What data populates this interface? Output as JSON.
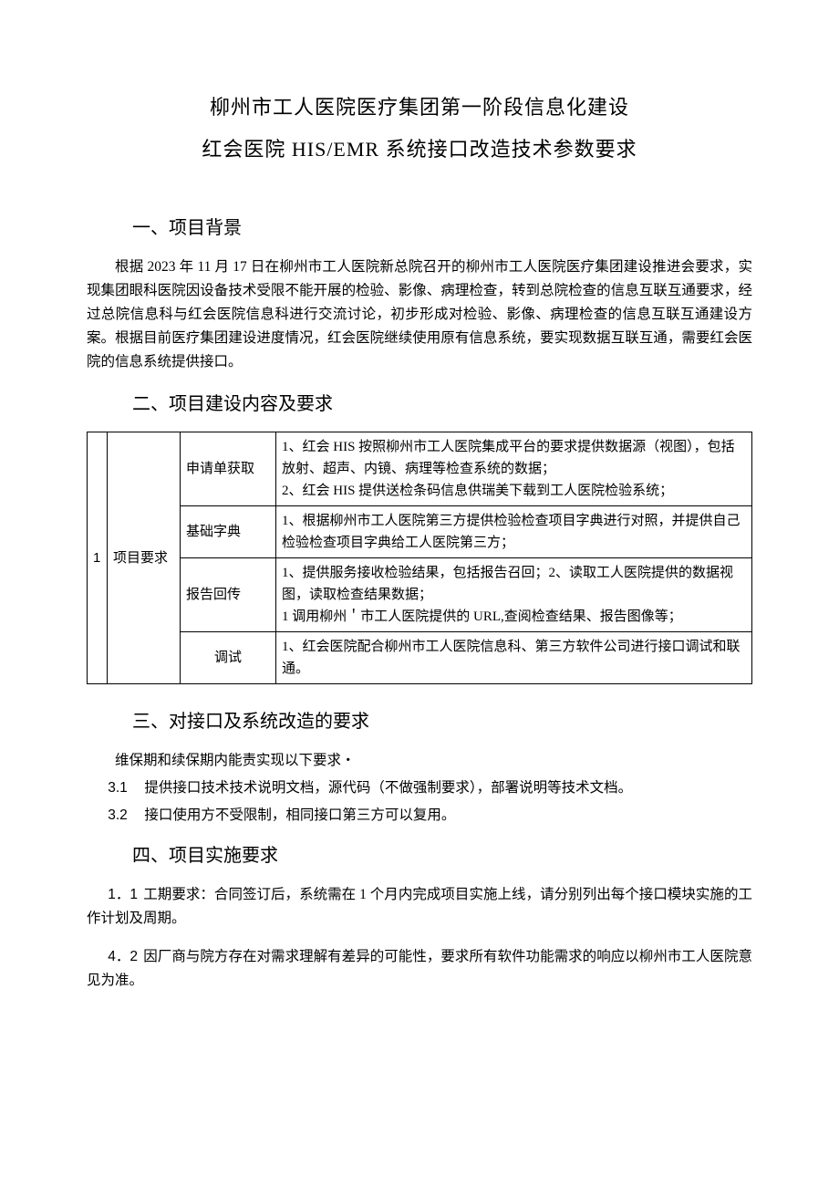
{
  "title": {
    "line1": "柳州市工人医院医疗集团第一阶段信息化建设",
    "line2": "红会医院 HIS/EMR 系统接口改造技术参数要求"
  },
  "section1": {
    "heading": "一、项目背景",
    "body": "根据 2023 年 11 月 17 日在柳州市工人医院新总院召开的柳州市工人医院医疗集团建设推进会要求，实现集团眼科医院因设备技术受限不能开展的检验、影像、病理检查，转到总院检查的信息互联互通要求，经过总院信息科与红会医院信息科进行交流讨论，初步形成对检验、影像、病理检查的信息互联互通建设方案。根据目前医疗集团建设进度情况，红会医院继续使用原有信息系统，要实现数据互联互通，需要红会医院的信息系统提供接口。"
  },
  "section2": {
    "heading": "二、项目建设内容及要求",
    "table": {
      "row_index": "1",
      "category": "项目要求",
      "rows": [
        {
          "sub": "申请单获取",
          "desc": "1、红会 HIS 按照柳州市工人医院集成平台的要求提供数据源（视图），包括放射、超声、内镜、病理等检查系统的数据；\n2、红会 HIS 提供送检条码信息供瑞美下载到工人医院检验系统；"
        },
        {
          "sub": "基础字典",
          "desc": "1、根据柳州市工人医院第三方提供检验检查项目字典进行对照，并提供自己检验检查项目字典给工人医院第三方；"
        },
        {
          "sub": "报告回传",
          "desc": "1、提供服务接收检验结果，包括报告召回；2、读取工人医院提供的数据视图，读取检查结果数据；\n1 调用柳州＇市工人医院提供的 URL,查阅检查结果、报告图像等；"
        },
        {
          "sub": "调试",
          "desc": "1、红会医院配合柳州市工人医院信息科、第三方软件公司进行接口调试和联通。"
        }
      ]
    }
  },
  "section3": {
    "heading": "三、对接口及系统改造的要求",
    "intro": "维保期和续保期内能责实现以下要求・",
    "items": [
      {
        "num": "3.1",
        "text": "提供接口技术技术说明文档，源代码（不做强制要求），部署说明等技术文档。"
      },
      {
        "num": "3.2",
        "text": "接口使用方不受限制，相同接口第三方可以复用。"
      }
    ]
  },
  "section4": {
    "heading": "四、项目实施要求",
    "items": [
      {
        "num": "1．1",
        "text": "工期要求：合同签订后，系统需在 1 个月内完成项目实施上线，请分别列出每个接口模块实施的工作计划及周期。"
      },
      {
        "num": "4．2",
        "text": "因厂商与院方存在对需求理解有差异的可能性，要求所有软件功能需求的响应以柳州市工人医院意见为准。"
      }
    ]
  },
  "style": {
    "background_color": "#ffffff",
    "text_color": "#000000",
    "border_color": "#000000",
    "title_fontsize": 22,
    "heading_fontsize": 20,
    "body_fontsize": 15.5,
    "line_height": 1.68
  }
}
